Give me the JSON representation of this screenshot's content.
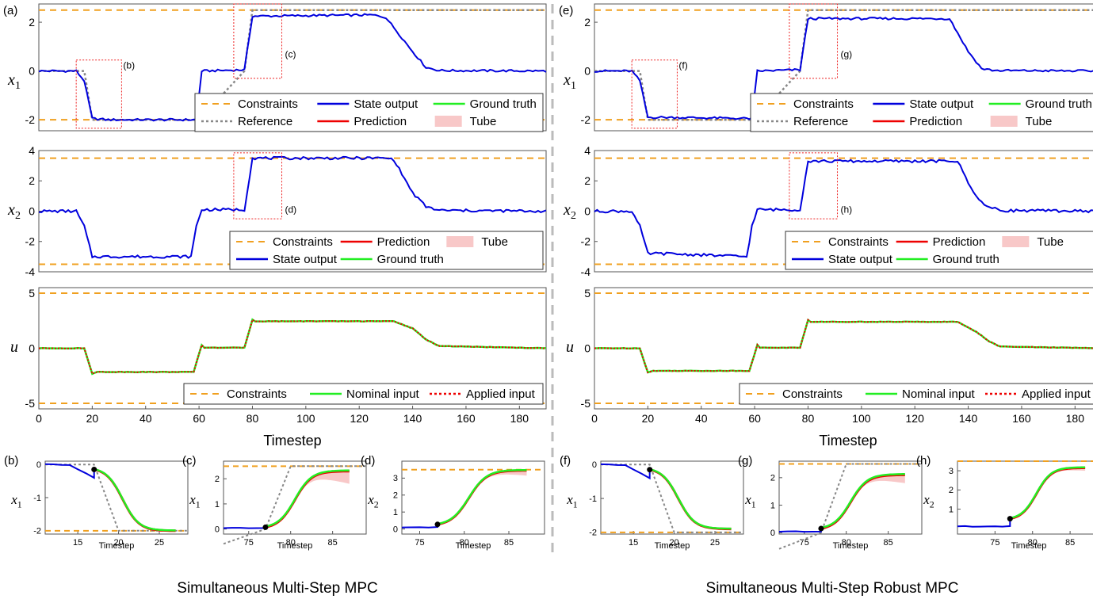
{
  "colors": {
    "constraint": "#F0A020",
    "state": "#0000DD",
    "reference": "#888888",
    "prediction": "#EE0000",
    "ground_truth": "#22EE22",
    "tube": "#F8C8C8",
    "box": "#EE2222"
  },
  "panels": [
    {
      "id": "left",
      "panel_label": "(a)",
      "caption": "Simultaneous Multi-Step MPC",
      "zoom_labels": [
        "(b)",
        "(c)",
        "(d)"
      ]
    },
    {
      "id": "right",
      "panel_label": "(e)",
      "caption": "Simultaneous Multi-Step Robust MPC",
      "zoom_labels": [
        "(f)",
        "(g)",
        "(h)"
      ]
    }
  ],
  "main_axes": {
    "xlabel": "Timestep",
    "xticks": [
      0,
      20,
      40,
      60,
      80,
      100,
      120,
      140,
      160,
      180
    ],
    "xlim": [
      0,
      190
    ],
    "x1": {
      "ylabel": "x",
      "sub": "1",
      "yticks": [
        -2,
        0,
        2
      ],
      "ylim": [
        -2.45,
        2.75
      ]
    },
    "x2": {
      "ylabel": "x",
      "sub": "2",
      "yticks": [
        -4,
        -2,
        0,
        2,
        4
      ],
      "ylim": [
        -4,
        4
      ]
    },
    "u": {
      "ylabel": "u",
      "yticks": [
        -5,
        0,
        5
      ],
      "ylim": [
        -5.5,
        5.5
      ]
    }
  },
  "legends": {
    "x1": [
      "Constraints",
      "State output",
      "Ground truth",
      "Reference",
      "Prediction",
      "Tube"
    ],
    "x2": [
      "Constraints",
      "Prediction",
      "Tube",
      "State output",
      "Ground truth"
    ],
    "u": [
      "Constraints",
      "Nominal input",
      "Applied input"
    ]
  },
  "chart_data": [
    {
      "type": "line",
      "title": "(a) Simultaneous Multi-Step MPC",
      "constraints": {
        "x1": [
          -2,
          2.5
        ],
        "x2": [
          -3.5,
          3.5
        ],
        "u": [
          -5,
          5
        ]
      },
      "reference": {
        "x": [
          0,
          17,
          20,
          60,
          77,
          80,
          190
        ],
        "y": [
          0,
          0,
          -2,
          -2,
          0,
          2.5,
          2.5
        ]
      },
      "series": [
        {
          "name": "State output x1",
          "x": [
            0,
            14,
            17,
            20,
            26,
            59,
            61,
            77,
            80,
            125,
            130,
            140,
            145,
            150,
            190
          ],
          "y": [
            0,
            0,
            -0.4,
            -1.95,
            -2,
            -2,
            0,
            0.05,
            2.25,
            2.3,
            2.2,
            0.8,
            0.15,
            0.02,
            0
          ]
        },
        {
          "name": "State output x2",
          "x": [
            0,
            14,
            17,
            20,
            26,
            57,
            59,
            61,
            77,
            80,
            130,
            133,
            140,
            145,
            150,
            190
          ],
          "y": [
            0,
            0,
            -1,
            -3,
            -3,
            -3,
            -1,
            0.1,
            0.1,
            3.5,
            3.5,
            3.4,
            1.2,
            0.3,
            0.05,
            0
          ]
        },
        {
          "name": "Nominal input",
          "x": [
            0,
            17,
            20,
            22,
            58,
            60,
            61,
            62,
            77,
            80,
            81,
            133,
            140,
            145,
            150,
            190
          ],
          "y": [
            0,
            0,
            -2.3,
            -2.15,
            -2.15,
            -0.5,
            0.3,
            0.05,
            0.05,
            2.6,
            2.45,
            2.45,
            1.8,
            0.8,
            0.2,
            0
          ]
        }
      ],
      "zooms": [
        {
          "label": "(b)",
          "ylabel": "x1",
          "xlim": [
            11,
            28.5
          ],
          "ylim": [
            -2.1,
            0.1
          ],
          "xticks": [
            15,
            20,
            25
          ],
          "yticks": [
            -2,
            -1,
            0
          ],
          "constraints": [
            -2
          ],
          "marker": [
            17,
            -0.15
          ],
          "end": -2.0,
          "tube_spread": 0.08
        },
        {
          "label": "(c)",
          "ylabel": "x1",
          "xlim": [
            72,
            89
          ],
          "ylim": [
            -0.2,
            2.7
          ],
          "xticks": [
            75,
            80,
            85
          ],
          "yticks": [
            0,
            1,
            2
          ],
          "constraints": [
            2.5
          ],
          "marker": [
            77,
            0.07
          ],
          "end": 2.3,
          "tube_spread": 0.5
        },
        {
          "label": "(d)",
          "ylabel": "x2",
          "xlim": [
            73,
            89
          ],
          "ylim": [
            -0.3,
            4.0
          ],
          "xticks": [
            75,
            80,
            85
          ],
          "yticks": [
            0,
            1,
            2,
            3
          ],
          "constraints": [
            3.5
          ],
          "marker": [
            77,
            0.27
          ],
          "end": 3.45,
          "tube_spread": 0.3
        }
      ]
    },
    {
      "type": "line",
      "title": "(e) Simultaneous Multi-Step Robust MPC",
      "constraints": {
        "x1": [
          -2,
          2.5
        ],
        "x2": [
          -3.5,
          3.5
        ],
        "u": [
          -5,
          5
        ]
      },
      "reference": {
        "x": [
          0,
          17,
          20,
          60,
          77,
          80,
          190
        ],
        "y": [
          0,
          0,
          -2,
          -2,
          0,
          2.5,
          2.5
        ]
      },
      "series": [
        {
          "name": "State output x1",
          "x": [
            0,
            14,
            17,
            20,
            26,
            59,
            61,
            77,
            80,
            133,
            140,
            145,
            150,
            190
          ],
          "y": [
            0,
            0,
            -0.4,
            -1.9,
            -1.9,
            -1.95,
            0,
            0.05,
            2.15,
            2.15,
            0.8,
            0.1,
            0.02,
            0
          ]
        },
        {
          "name": "State output x2",
          "x": [
            0,
            14,
            17,
            20,
            26,
            57,
            59,
            61,
            77,
            80,
            133,
            136,
            142,
            147,
            152,
            190
          ],
          "y": [
            0,
            0,
            -1,
            -2.8,
            -2.8,
            -3.0,
            -1,
            0.1,
            0.1,
            3.3,
            3.3,
            3.3,
            1.2,
            0.3,
            0.05,
            0
          ]
        },
        {
          "name": "Nominal input",
          "x": [
            0,
            17,
            20,
            22,
            58,
            60,
            61,
            62,
            77,
            80,
            81,
            136,
            143,
            148,
            152,
            190
          ],
          "y": [
            0,
            0,
            -2.2,
            -2.05,
            -2.05,
            -0.5,
            0.3,
            0.05,
            0.05,
            2.55,
            2.4,
            2.4,
            1.5,
            0.6,
            0.15,
            0
          ]
        }
      ],
      "zooms": [
        {
          "label": "(f)",
          "ylabel": "x1",
          "xlim": [
            11,
            28.5
          ],
          "ylim": [
            -2.05,
            0.1
          ],
          "xticks": [
            15,
            20,
            25
          ],
          "yticks": [
            -2,
            -1,
            0
          ],
          "constraints": [
            -2
          ],
          "marker": [
            17,
            -0.15
          ],
          "end": -1.9,
          "tube_spread": 0.1
        },
        {
          "label": "(g)",
          "ylabel": "x1",
          "xlim": [
            72,
            89
          ],
          "ylim": [
            -0.05,
            2.6
          ],
          "xticks": [
            75,
            80,
            85
          ],
          "yticks": [
            0,
            1,
            2
          ],
          "constraints": [
            2.5
          ],
          "marker": [
            77,
            0.15
          ],
          "end": 2.1,
          "tube_spread": 0.3
        },
        {
          "label": "(h)",
          "ylabel": "x2",
          "xlim": [
            70,
            89
          ],
          "ylim": [
            -0.3,
            3.5
          ],
          "xticks": [
            75,
            80,
            85
          ],
          "yticks": [
            1,
            2,
            3
          ],
          "constraints": [
            3.5
          ],
          "marker": [
            77,
            0.5
          ],
          "end": 3.15,
          "tube_spread": 0.15
        }
      ]
    }
  ]
}
